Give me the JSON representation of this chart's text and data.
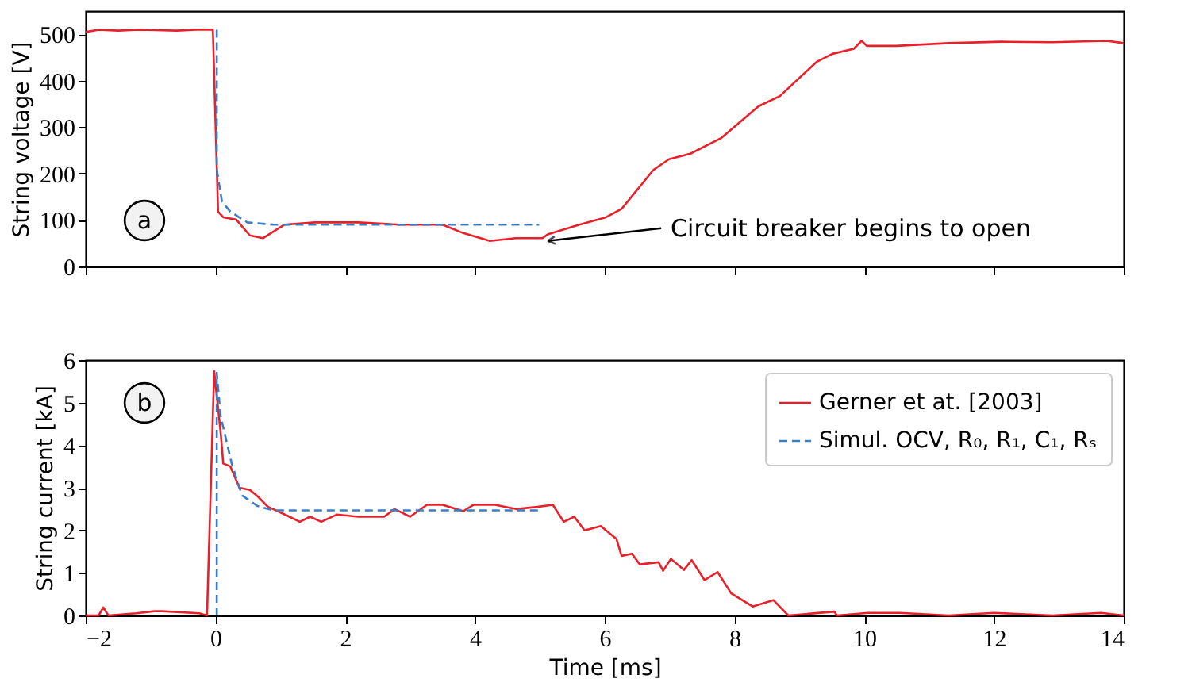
{
  "chart_data": [
    {
      "type": "line",
      "ylabel": "String voltage [V]",
      "xlim": [
        -2,
        14
      ],
      "xticks": [
        -2,
        0,
        2,
        4,
        6,
        8,
        10,
        12,
        14
      ],
      "ylim": [
        0,
        550
      ],
      "yticks": [
        0,
        100,
        200,
        300,
        400,
        500
      ],
      "tick_labels": "y",
      "grid": false,
      "legend": false,
      "annotations": [
        "a",
        {
          "text": "Circuit breaker begins to open",
          "x": 5.12,
          "y": 55
        }
      ],
      "series": [
        {
          "color": "#e8202a",
          "line_style": "solid",
          "x": [
            -2,
            -1.8,
            -1.5,
            -1.2,
            -0.9,
            -0.6,
            -0.3,
            -0.04,
            0.04,
            0.12,
            0.32,
            0.53,
            0.73,
            1.06,
            1.54,
            2.2,
            2.84,
            3.5,
            3.82,
            4.23,
            4.63,
            5.04,
            5.12,
            5.61,
            6.02,
            6.26,
            6.75,
            6.99,
            7.32,
            7.8,
            8.37,
            8.7,
            9.27,
            9.51,
            9.84,
            9.96,
            10.04,
            10.49,
            11.3,
            12.11,
            12.9,
            13.74,
            14
          ],
          "values": [
            505,
            510,
            508,
            510,
            509,
            508,
            510,
            510,
            118,
            106,
            101,
            67,
            61,
            90,
            95,
            95,
            90,
            90,
            72,
            55,
            61,
            61,
            69,
            90,
            106,
            124,
            208,
            231,
            243,
            277,
            345,
            367,
            441,
            458,
            469,
            486,
            475,
            475,
            481,
            484,
            483,
            486,
            481
          ]
        },
        {
          "color": "#3a7fc4",
          "line_style": "dashed",
          "x": [
            0.02,
            0.02,
            0.1,
            0.23,
            0.49,
            0.9,
            4.99
          ],
          "values": [
            510,
            209,
            140,
            118,
            95,
            90,
            90
          ]
        }
      ]
    },
    {
      "type": "line",
      "xlabel": "Time [ms]",
      "ylabel": "String current [kA]",
      "xlim": [
        -2,
        14
      ],
      "xticks": [
        -2,
        0,
        2,
        4,
        6,
        8,
        10,
        12,
        14
      ],
      "ylim": [
        0,
        6
      ],
      "yticks": [
        0,
        1,
        2,
        3,
        4,
        5,
        6
      ],
      "grid": false,
      "legend": "top right",
      "annotations": [
        "b"
      ],
      "series": [
        {
          "name": "Gerner et at. [2003]",
          "color": "#e8202a",
          "line_style": "solid",
          "x": [
            -2,
            -1.8,
            -1.73,
            -1.65,
            -1.22,
            -0.94,
            -0.82,
            -0.25,
            -0.13,
            -0.02,
            0.08,
            0.12,
            0.23,
            0.37,
            0.53,
            0.65,
            0.81,
            0.89,
            1.14,
            1.3,
            1.46,
            1.63,
            1.87,
            2.2,
            2.6,
            2.76,
            3.0,
            3.26,
            3.5,
            3.82,
            3.98,
            4.31,
            4.63,
            4.96,
            5.2,
            5.37,
            5.53,
            5.69,
            5.94,
            6.18,
            6.26,
            6.42,
            6.54,
            6.83,
            6.9,
            7.02,
            7.22,
            7.34,
            7.54,
            7.74,
            7.95,
            8.28,
            8.6,
            8.83,
            9.54,
            9.58,
            10.06,
            10.55,
            11.3,
            12.0,
            12.9,
            13.65,
            14
          ],
          "values": [
            0,
            0,
            0.19,
            0,
            0.05,
            0.1,
            0.1,
            0.05,
            0,
            5.74,
            4.3,
            3.57,
            3.5,
            3.0,
            2.95,
            2.8,
            2.55,
            2.5,
            2.32,
            2.2,
            2.32,
            2.2,
            2.37,
            2.32,
            2.32,
            2.5,
            2.32,
            2.6,
            2.6,
            2.45,
            2.6,
            2.6,
            2.5,
            2.55,
            2.6,
            2.2,
            2.32,
            2.0,
            2.1,
            1.8,
            1.4,
            1.45,
            1.2,
            1.25,
            1.05,
            1.33,
            1.07,
            1.3,
            0.83,
            1.02,
            0.52,
            0.21,
            0.36,
            0,
            0.09,
            0,
            0.06,
            0.06,
            0,
            0.06,
            0,
            0.06,
            0
          ]
        },
        {
          "name": "Simul. OCV, R₀, R₁, C₁, Rₛ",
          "color": "#3a7fc4",
          "line_style": "dashed",
          "x": [
            0.02,
            0.02,
            0.08,
            0.25,
            0.41,
            0.65,
            0.89,
            4.99
          ],
          "values": [
            0,
            5.7,
            4.68,
            3.57,
            2.82,
            2.57,
            2.47,
            2.47
          ]
        }
      ]
    }
  ]
}
